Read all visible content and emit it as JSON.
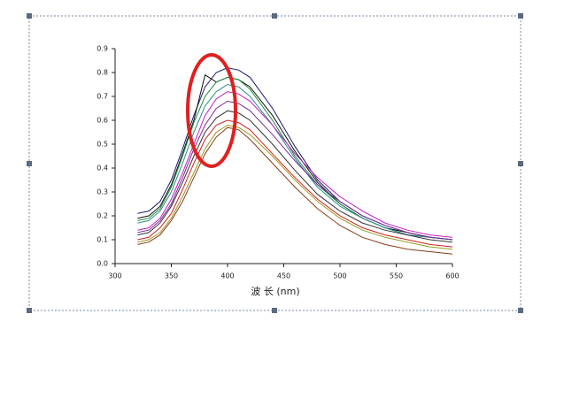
{
  "chart_data": {
    "type": "line",
    "xlabel": "波 长 (nm)",
    "x": [
      320,
      330,
      340,
      350,
      360,
      370,
      380,
      390,
      400,
      410,
      420,
      440,
      460,
      480,
      500,
      520,
      540,
      560,
      580,
      600
    ],
    "series": [
      {
        "color": "#1a1a6e",
        "values": [
          0.21,
          0.22,
          0.26,
          0.35,
          0.48,
          0.62,
          0.74,
          0.8,
          0.82,
          0.81,
          0.78,
          0.65,
          0.49,
          0.35,
          0.26,
          0.2,
          0.16,
          0.13,
          0.11,
          0.1
        ]
      },
      {
        "color": "#111111",
        "values": [
          0.19,
          0.2,
          0.24,
          0.33,
          0.46,
          0.6,
          0.79,
          0.76,
          0.78,
          0.77,
          0.74,
          0.62,
          0.47,
          0.34,
          0.25,
          0.19,
          0.15,
          0.13,
          0.11,
          0.1
        ]
      },
      {
        "color": "#1e8c3a",
        "values": [
          0.18,
          0.19,
          0.23,
          0.32,
          0.45,
          0.59,
          0.7,
          0.76,
          0.78,
          0.77,
          0.73,
          0.6,
          0.45,
          0.33,
          0.25,
          0.19,
          0.15,
          0.12,
          0.11,
          0.1
        ]
      },
      {
        "color": "#2a8c8c",
        "values": [
          0.17,
          0.18,
          0.22,
          0.3,
          0.42,
          0.55,
          0.66,
          0.72,
          0.75,
          0.74,
          0.7,
          0.58,
          0.44,
          0.32,
          0.24,
          0.19,
          0.15,
          0.12,
          0.11,
          0.1
        ]
      },
      {
        "color": "#c020c0",
        "values": [
          0.14,
          0.15,
          0.19,
          0.27,
          0.38,
          0.5,
          0.62,
          0.69,
          0.72,
          0.71,
          0.68,
          0.58,
          0.46,
          0.36,
          0.28,
          0.22,
          0.17,
          0.14,
          0.12,
          0.11
        ]
      },
      {
        "color": "#7a2a9a",
        "values": [
          0.13,
          0.14,
          0.18,
          0.25,
          0.36,
          0.48,
          0.58,
          0.65,
          0.68,
          0.67,
          0.64,
          0.54,
          0.43,
          0.33,
          0.26,
          0.2,
          0.16,
          0.13,
          0.11,
          0.1
        ]
      },
      {
        "color": "#333333",
        "values": [
          0.12,
          0.13,
          0.17,
          0.24,
          0.34,
          0.45,
          0.55,
          0.61,
          0.64,
          0.63,
          0.6,
          0.5,
          0.39,
          0.29,
          0.22,
          0.17,
          0.14,
          0.12,
          0.1,
          0.09
        ]
      },
      {
        "color": "#d02020",
        "values": [
          0.1,
          0.11,
          0.15,
          0.21,
          0.31,
          0.42,
          0.52,
          0.58,
          0.6,
          0.59,
          0.56,
          0.46,
          0.36,
          0.27,
          0.2,
          0.15,
          0.12,
          0.1,
          0.08,
          0.07
        ]
      },
      {
        "color": "#9a9a20",
        "values": [
          0.09,
          0.1,
          0.13,
          0.19,
          0.28,
          0.38,
          0.48,
          0.55,
          0.58,
          0.57,
          0.54,
          0.45,
          0.35,
          0.26,
          0.19,
          0.14,
          0.11,
          0.09,
          0.07,
          0.06
        ]
      },
      {
        "color": "#8a3a1a",
        "values": [
          0.08,
          0.09,
          0.12,
          0.18,
          0.26,
          0.36,
          0.46,
          0.53,
          0.57,
          0.56,
          0.52,
          0.42,
          0.32,
          0.23,
          0.16,
          0.11,
          0.08,
          0.06,
          0.05,
          0.04
        ]
      }
    ],
    "xlim": [
      300,
      600
    ],
    "xticks": [
      300,
      350,
      400,
      450,
      500,
      550,
      600
    ],
    "ylim": [
      0,
      0.9
    ],
    "yticks": [
      {
        "value": 0,
        "label": "0.0"
      },
      0.1,
      0.2,
      0.3,
      0.4,
      0.5,
      0.6,
      0.7,
      0.8,
      0.9
    ],
    "grid": false
  }
}
